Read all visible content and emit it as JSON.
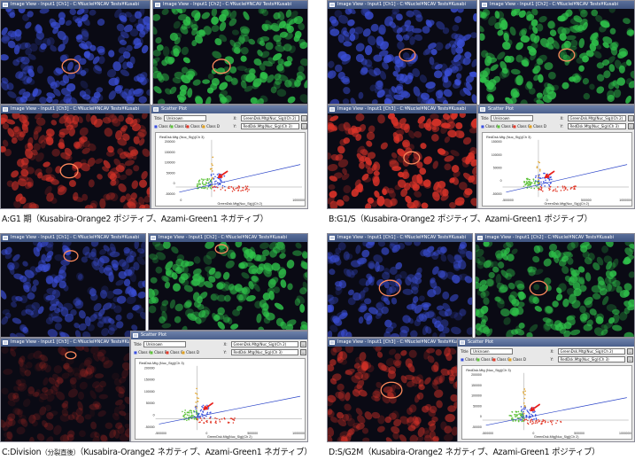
{
  "panels": [
    {
      "id": "A",
      "caption_letter": "A",
      "caption": ":G1 期（Kusabira-Orange2 ポジティブ、Azami-Green1 ネガティブ）",
      "caption_small": "",
      "caption_rest": "",
      "windows": [
        {
          "title": "Image View - Input1 [Ch1] - C:¥Nuclei¥NCAV Tests¥Kusabi"
        },
        {
          "title": "Image View - Input1 [Ch2] - C:¥Nuclei¥NCAV Tests¥Kusabi"
        },
        {
          "title": "Image View - Input1 [Ch3] - C:¥Nuclei¥NCAV Tests¥Kusabi"
        }
      ],
      "scatter": {
        "title": "Scatter Plot",
        "title_label": "Title",
        "title_value": "Unknown",
        "x_label": "X:",
        "x_value": "GreenDsk.Mtg(Nuc_Sig)(Ch 2)",
        "y_label": "Y:",
        "y_value": "RedDsk.Mtg(Nuc_Sig)(Ch 3)",
        "classes": [
          "Class A",
          "Class B",
          "Class C",
          "Class D"
        ],
        "plot_title": "RedDsk.Mtg (Nuc_Sig)(Ch 3)",
        "y_ticks": [
          "200000",
          "150000",
          "100000",
          "50000",
          "0",
          "-50000"
        ],
        "x_ticks": [
          "0",
          "1000000"
        ],
        "x_axis_label": "GreenDsk.Mtg(Nuc_Sig)(Ch 2)"
      }
    },
    {
      "id": "B",
      "caption_letter": "B",
      "caption": ":G1/S（Kusabira-Orange2 ポジティブ、Azami-Green1 ポジティブ）",
      "caption_small": "",
      "caption_rest": "",
      "windows": [
        {
          "title": "Image View - Input1 [Ch1] - C:¥Nuclei¥NCAV Tests¥Kusabi"
        },
        {
          "title": "Image View - Input1 [Ch2] - C:¥Nuclei¥NCAV Tests¥Kusabi"
        },
        {
          "title": "Image View - Input1 [Ch3] - C:¥Nuclei¥NCAV Tests¥Kusabi"
        }
      ],
      "scatter": {
        "title": "Scatter Plot",
        "title_label": "Title",
        "title_value": "Unknown",
        "x_label": "X:",
        "x_value": "GreenDsk.Mtg(Nuc_Sig)(Ch 2)",
        "y_label": "Y:",
        "y_value": "RedDsk.Mtg(Nuc_Sig)(Ch 3)",
        "classes": [
          "Class A",
          "Class B",
          "Class C",
          "Class D"
        ],
        "plot_title": "RedDsk.Mtg (Nuc_Sig)(Ch 3)",
        "y_ticks": [
          "150000",
          "100000",
          "50000",
          "0",
          "-50000"
        ],
        "x_ticks": [
          "-500000",
          "0",
          "500000",
          "1000000"
        ],
        "x_axis_label": "GreenDsk.Mtg(Nuc_Sig)(Ch 2)"
      }
    },
    {
      "id": "C",
      "caption_letter": "C",
      "caption": ":Division",
      "caption_small": "（分裂直後）",
      "caption_rest": "（Kusabira-Orange2 ネガティブ、Azami-Green1 ネガティブ）",
      "windows": [
        {
          "title": "Image View - Input1 [Ch1] - C:¥Nuclei¥NCAV Tests¥Kusabi"
        },
        {
          "title": "Image View - Input1 [Ch2] - C:¥Nuclei¥NCAV Tests¥Kusabi"
        },
        {
          "title": "Image View - Input1 [Ch3] - C:¥Nuclei¥NCAV Tests¥Kusabi"
        }
      ],
      "scatter": {
        "title": "Scatter Plot",
        "title_label": "Title",
        "title_value": "Unknown",
        "x_label": "X:",
        "x_value": "GreenDsk.Mtg(Nuc_Sig)(Ch 2)",
        "y_label": "Y:",
        "y_value": "RedDsk.Mtg(Nuc_Sig)(Ch 3)",
        "classes": [
          "Class A",
          "Class B",
          "Class C",
          "Class D"
        ],
        "plot_title": "RedDsk.Mtg (Nuc_Sig)(Ch 3)",
        "y_ticks": [
          "200000",
          "150000",
          "100000",
          "50000",
          "0",
          "-50000"
        ],
        "x_ticks": [
          "-500000",
          "0",
          "500000",
          "1000000"
        ],
        "x_axis_label": "GreenDsk.Mtg(Nuc_Sig)(Ch 2)"
      }
    },
    {
      "id": "D",
      "caption_letter": "D",
      "caption": ":S/G2M（Kusabira-Orange2 ネガティブ、Azami-Green1 ポジティブ）",
      "caption_small": "",
      "caption_rest": "",
      "windows": [
        {
          "title": "Image View - Input1 [Ch1] - C:¥Nuclei¥NCAV Tests¥Kusabi"
        },
        {
          "title": "Image View - Input1 [Ch2] - C:¥Nuclei¥NCAV Tests¥Kusabi"
        },
        {
          "title": "Image View - Input1 [Ch3] - C:¥Nuclei¥NCAV Tests¥Kusabi"
        }
      ],
      "scatter": {
        "title": "Scatter Plot",
        "title_label": "Title",
        "title_value": "Unknown",
        "x_label": "X:",
        "x_value": "GreenDsk.Mtg(Nuc_Sig)(Ch 2)",
        "y_label": "Y:",
        "y_value": "RedDsk.Mtg(Nuc_Sig)(Ch 3)",
        "classes": [
          "Class A",
          "Class B",
          "Class C",
          "Class D"
        ],
        "plot_title": "RedDsk.Mtg (Nuc_Sig)(Ch 3)",
        "y_ticks": [
          "200000",
          "150000",
          "100000",
          "50000",
          "0",
          "-50000"
        ],
        "x_ticks": [
          "-500000",
          "0",
          "500000",
          "1000000"
        ],
        "x_axis_label": "GreenDsk.Mtg(Nuc_Sig)(Ch 2)"
      }
    }
  ],
  "colors": {
    "blue_channel": "#3b4fd8",
    "green_channel": "#2fc24a",
    "red_channel": "#d83228",
    "selection_ring": "#ff8a5c",
    "arrow": "#e8201c",
    "regression": "#2a44c8",
    "class_a": "#3a50e0",
    "class_b": "#5ec23a",
    "class_c": "#e23a2a",
    "class_d": "#e0a020"
  }
}
